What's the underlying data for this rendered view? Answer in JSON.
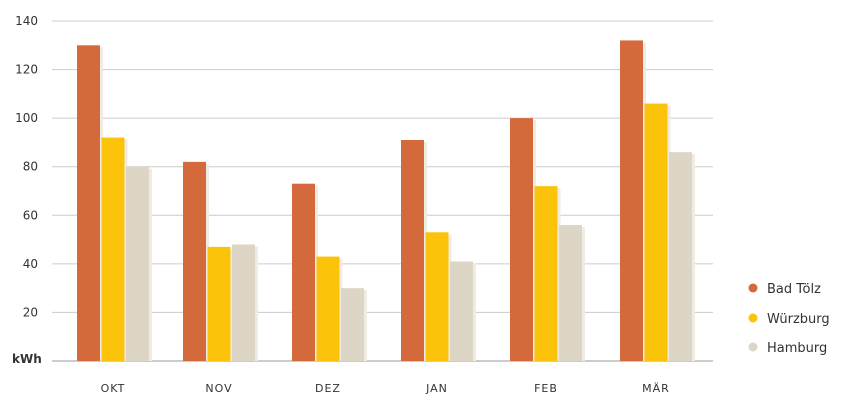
{
  "chart_data": {
    "type": "bar",
    "ylabel": "kWh",
    "ylim": [
      0,
      140
    ],
    "yticks": [
      20,
      40,
      60,
      80,
      100,
      120,
      140
    ],
    "grid": true,
    "legend_position": "right",
    "categories": [
      "OKT",
      "NOV",
      "DEZ",
      "JAN",
      "FEB",
      "MÄR"
    ],
    "series": [
      {
        "name": "Bad Tölz",
        "color": "#d4693b",
        "values": [
          130,
          82,
          73,
          91,
          100,
          132
        ]
      },
      {
        "name": "Würzburg",
        "color": "#fcc30b",
        "values": [
          92,
          47,
          43,
          53,
          72,
          106
        ]
      },
      {
        "name": "Hamburg",
        "color": "#ddd6c6",
        "values": [
          80,
          48,
          30,
          41,
          56,
          86
        ]
      }
    ]
  }
}
